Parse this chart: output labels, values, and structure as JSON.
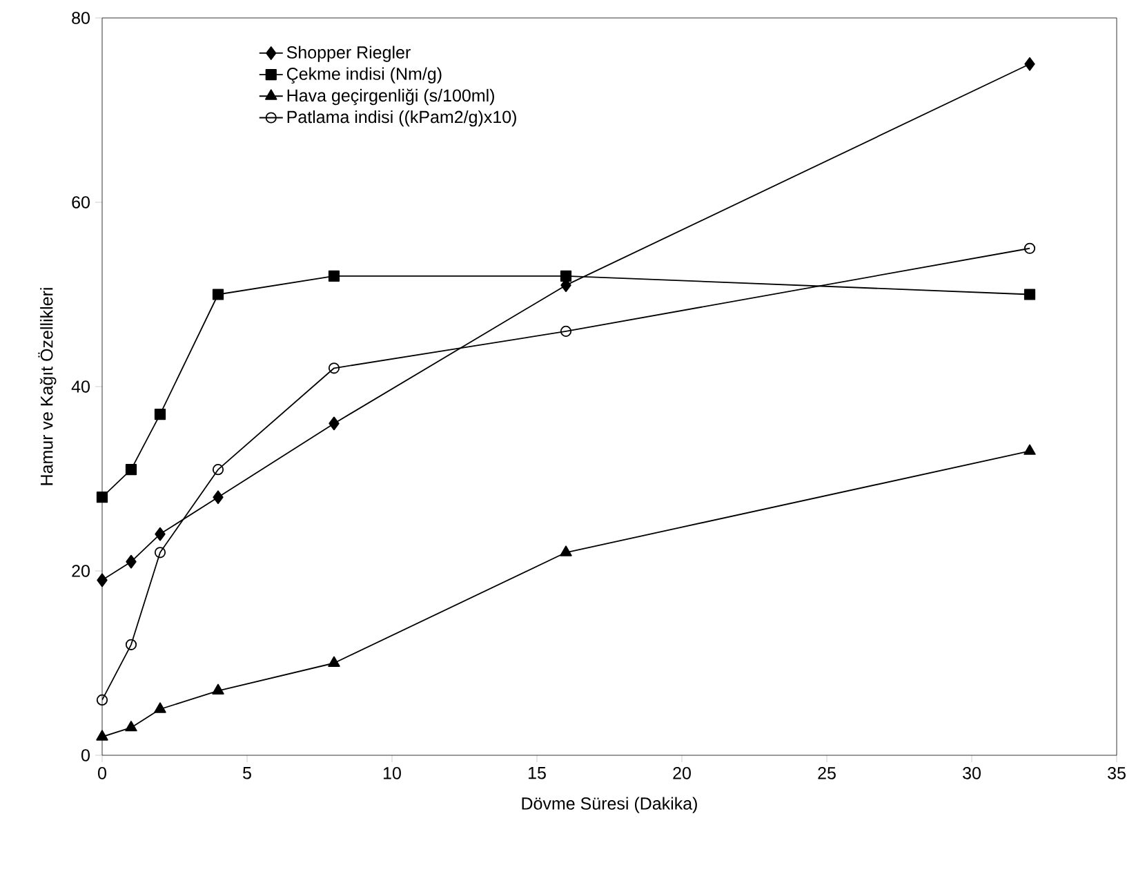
{
  "chart_data": {
    "type": "line",
    "xlabel": "Dövme Süresi (Dakika)",
    "ylabel": "Hamur ve Kağıt Özellikleri",
    "xlim": [
      0,
      35
    ],
    "ylim": [
      0,
      80
    ],
    "xticks": [
      0,
      5,
      10,
      15,
      20,
      25,
      30,
      35
    ],
    "yticks": [
      0,
      20,
      40,
      60,
      80
    ],
    "grid": false,
    "legend": "top left",
    "line_style": "solid",
    "series": [
      {
        "name": "Shopper Riegler",
        "color": "#000000",
        "marker": "diamond",
        "x": [
          0,
          1,
          2,
          4,
          8,
          16,
          32
        ],
        "values": [
          19,
          21,
          24,
          28,
          36,
          51,
          75
        ]
      },
      {
        "name": "Çekme indisi (Nm/g)",
        "color": "#000000",
        "marker": "square",
        "x": [
          0,
          1,
          2,
          4,
          8,
          16,
          32
        ],
        "values": [
          28,
          31,
          37,
          50,
          52,
          52,
          50
        ]
      },
      {
        "name": "Hava geçirgenliği (s/100ml)",
        "color": "#000000",
        "marker": "triangle",
        "x": [
          0,
          1,
          2,
          4,
          8,
          16,
          32
        ],
        "values": [
          2,
          3,
          5,
          7,
          10,
          22,
          33
        ]
      },
      {
        "name": "Patlama indisi ((kPam2/g)x10)",
        "color": "#000000",
        "marker": "circle",
        "x": [
          0,
          1,
          2,
          4,
          8,
          16,
          32
        ],
        "values": [
          6,
          12,
          22,
          31,
          42,
          46,
          55
        ]
      }
    ]
  }
}
